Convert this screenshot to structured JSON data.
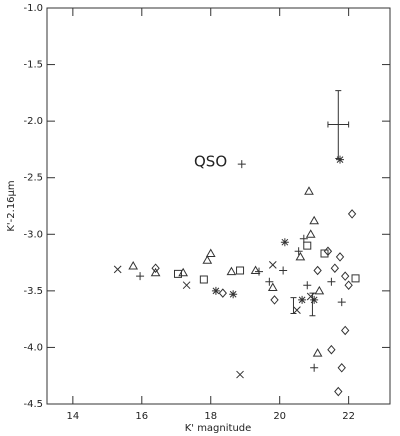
{
  "chart_data": {
    "type": "scatter",
    "xlabel": "K' magnitude",
    "ylabel": "K'-2.16µm",
    "annotation": "QSO",
    "xlim": [
      13.25,
      23.2
    ],
    "ylim": [
      -4.5,
      -1.0
    ],
    "xticks": [
      14,
      16,
      18,
      20,
      22
    ],
    "yticks": [
      {
        "value": -1.0,
        "label": "-1.0"
      },
      -1.5,
      {
        "value": -2.0,
        "label": "-2.0"
      },
      -2.5,
      {
        "value": -3.0,
        "label": "-3.0"
      },
      -3.5,
      {
        "value": -4.0,
        "label": "-4.0"
      },
      -4.5
    ],
    "series": [
      {
        "marker": "cross",
        "color": "#333333",
        "x": [
          15.3,
          17.3,
          18.85,
          19.8,
          20.9,
          20.5
        ],
        "y": [
          -3.31,
          -3.45,
          -4.24,
          -3.27,
          -3.55,
          -3.67
        ]
      },
      {
        "marker": "plus",
        "color": "#333333",
        "x": [
          15.95,
          19.4,
          19.7,
          20.1,
          20.55,
          20.7,
          20.8,
          21.0,
          21.5,
          21.8,
          18.9
        ],
        "y": [
          -3.37,
          -3.33,
          -3.42,
          -3.32,
          -3.15,
          -3.04,
          -3.45,
          -4.18,
          -3.42,
          -3.6,
          -2.38
        ]
      },
      {
        "marker": "triangle",
        "color": "#333333",
        "x": [
          15.75,
          16.4,
          17.2,
          17.9,
          18.0,
          18.6,
          19.3,
          19.8,
          20.85,
          21.0,
          20.9,
          20.6,
          21.15,
          21.1
        ],
        "y": [
          -3.28,
          -3.34,
          -3.34,
          -3.23,
          -3.17,
          -3.33,
          -3.32,
          -3.47,
          -2.62,
          -2.88,
          -3.0,
          -3.2,
          -3.5,
          -4.05
        ]
      },
      {
        "marker": "square",
        "color": "#333333",
        "x": [
          17.05,
          17.8,
          18.85,
          20.8,
          21.3,
          22.2
        ],
        "y": [
          -3.35,
          -3.4,
          -3.32,
          -3.1,
          -3.17,
          -3.39
        ]
      },
      {
        "marker": "diamond",
        "color": "#333333",
        "x": [
          16.4,
          18.35,
          19.85,
          21.1,
          21.4,
          21.6,
          21.75,
          21.9,
          22.0,
          22.1,
          21.9,
          21.5,
          21.8,
          21.7
        ],
        "y": [
          -3.3,
          -3.52,
          -3.58,
          -3.32,
          -3.15,
          -3.3,
          -3.2,
          -3.37,
          -3.45,
          -2.82,
          -3.85,
          -4.02,
          -4.18,
          -4.39
        ]
      },
      {
        "marker": "asterisk",
        "color": "#111111",
        "x": [
          18.15,
          18.65,
          20.15,
          20.65,
          21.75,
          21.0
        ],
        "y": [
          -3.5,
          -3.53,
          -3.07,
          -3.58,
          -2.34,
          -3.58
        ]
      }
    ],
    "errorbars": [
      {
        "x": 21.7,
        "y": -2.03,
        "xerr": 0.3,
        "yerr": 0.3
      },
      {
        "x": 20.4,
        "y": -3.63,
        "yerr": 0.07
      },
      {
        "x": 20.95,
        "y": -3.62,
        "yerr": 0.1
      }
    ]
  }
}
